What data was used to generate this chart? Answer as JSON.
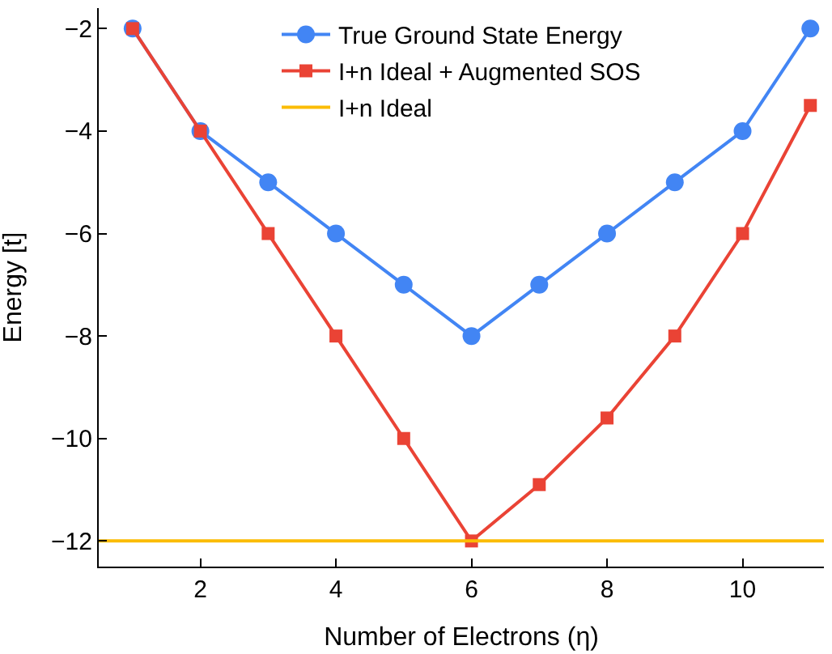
{
  "chart_data": {
    "type": "line",
    "xlabel": "Number of Electrons (η)",
    "ylabel": "Energy [t]",
    "x": [
      1,
      2,
      3,
      4,
      5,
      6,
      7,
      8,
      9,
      10,
      11
    ],
    "series": [
      {
        "name": "True Ground State Energy",
        "color": "#4285f4",
        "marker": "circle",
        "values": [
          -2,
          -4,
          -5,
          -6,
          -7,
          -8,
          -7,
          -6,
          -5,
          -4,
          -2
        ]
      },
      {
        "name": "I+n Ideal + Augmented SOS",
        "color": "#ea4335",
        "marker": "square",
        "values": [
          -2,
          -4,
          -6,
          -8,
          -10,
          -12,
          -10.9,
          -9.6,
          -8,
          -6,
          -3.5
        ]
      },
      {
        "name": "I+n Ideal",
        "color": "#fbbc04",
        "marker": "none",
        "x": [
          0.5,
          11.2
        ],
        "values": [
          -12,
          -12
        ]
      }
    ],
    "xlim": [
      0.5,
      11.2
    ],
    "xticks": [
      2,
      4,
      6,
      8,
      10
    ],
    "ylim": [
      -12.5,
      -1.6
    ],
    "yticks": [
      -12,
      -10,
      -8,
      -6,
      -4,
      -2
    ],
    "grid": false,
    "legend": "top"
  }
}
